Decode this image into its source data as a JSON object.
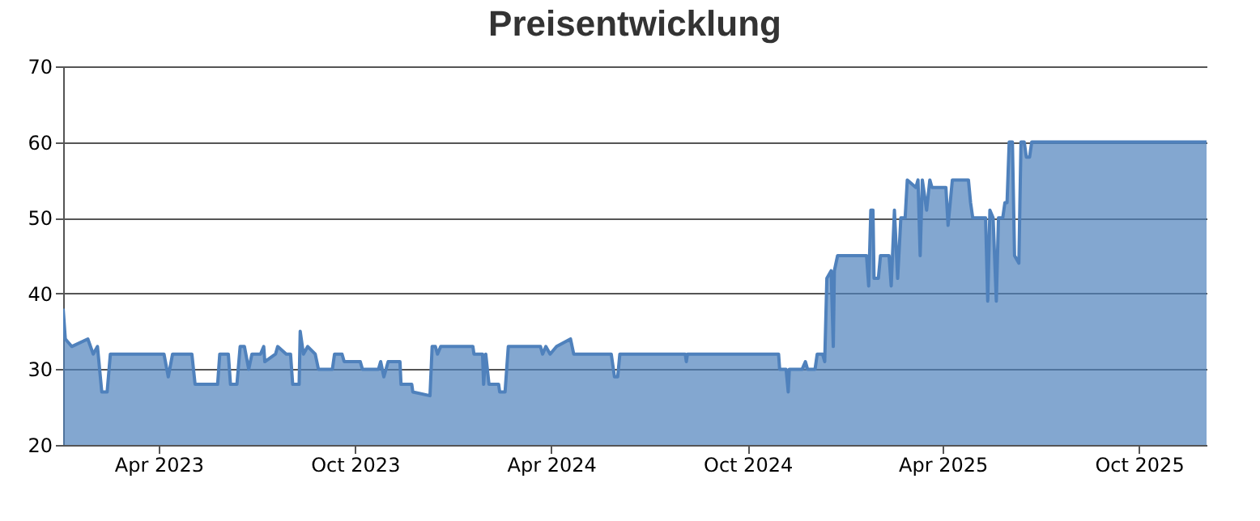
{
  "chart_data": {
    "type": "area",
    "title": "Preisentwicklung",
    "x": [
      "2023-01-02",
      "2023-01-04",
      "2023-01-10",
      "2023-01-25",
      "2023-01-30",
      "2023-02-03",
      "2023-02-07",
      "2023-02-12",
      "2023-02-15",
      "2023-04-06",
      "2023-04-10",
      "2023-04-14",
      "2023-05-02",
      "2023-05-05",
      "2023-05-26",
      "2023-05-28",
      "2023-06-05",
      "2023-06-07",
      "2023-06-13",
      "2023-06-16",
      "2023-06-20",
      "2023-06-24",
      "2023-06-27",
      "2023-07-05",
      "2023-07-08",
      "2023-07-09",
      "2023-07-19",
      "2023-07-21",
      "2023-07-29",
      "2023-08-02",
      "2023-08-04",
      "2023-08-10",
      "2023-08-11",
      "2023-08-14",
      "2023-08-18",
      "2023-08-25",
      "2023-08-28",
      "2023-09-10",
      "2023-09-12",
      "2023-09-19",
      "2023-09-21",
      "2023-10-06",
      "2023-10-08",
      "2023-10-23",
      "2023-10-25",
      "2023-10-28",
      "2023-11-01",
      "2023-11-12",
      "2023-11-13",
      "2023-11-23",
      "2023-11-24",
      "2023-12-10",
      "2023-12-12",
      "2023-12-15",
      "2023-12-17",
      "2023-12-20",
      "2024-01-19",
      "2024-01-20",
      "2024-01-28",
      "2024-01-29",
      "2024-01-31",
      "2024-02-03",
      "2024-02-12",
      "2024-02-13",
      "2024-02-18",
      "2024-02-21",
      "2024-03-22",
      "2024-03-24",
      "2024-03-27",
      "2024-03-31",
      "2024-04-06",
      "2024-04-19",
      "2024-04-22",
      "2024-05-27",
      "2024-05-30",
      "2024-06-02",
      "2024-06-04",
      "2024-08-04",
      "2024-08-05",
      "2024-08-06",
      "2024-10-30",
      "2024-10-31",
      "2024-11-06",
      "2024-11-08",
      "2024-11-09",
      "2024-11-21",
      "2024-11-24",
      "2024-11-26",
      "2024-12-03",
      "2024-12-05",
      "2024-12-10",
      "2024-12-12",
      "2024-12-14",
      "2024-12-18",
      "2024-12-20",
      "2024-12-21",
      "2024-12-24",
      "2025-01-20",
      "2025-01-22",
      "2025-01-24",
      "2025-01-26",
      "2025-01-27",
      "2025-01-31",
      "2025-02-02",
      "2025-02-10",
      "2025-02-12",
      "2025-02-15",
      "2025-02-18",
      "2025-02-21",
      "2025-02-25",
      "2025-02-27",
      "2025-03-07",
      "2025-03-09",
      "2025-03-11",
      "2025-03-13",
      "2025-03-17",
      "2025-03-20",
      "2025-03-22",
      "2025-04-04",
      "2025-04-06",
      "2025-04-10",
      "2025-04-25",
      "2025-04-27",
      "2025-04-29",
      "2025-05-11",
      "2025-05-13",
      "2025-05-15",
      "2025-05-18",
      "2025-05-21",
      "2025-05-23",
      "2025-05-27",
      "2025-05-29",
      "2025-05-31",
      "2025-06-02",
      "2025-06-05",
      "2025-06-07",
      "2025-06-11",
      "2025-06-13",
      "2025-06-16",
      "2025-06-18",
      "2025-06-21",
      "2025-06-23",
      "2025-12-03"
    ],
    "series": [
      {
        "color": "#4f81bc",
        "values": [
          38,
          34,
          33,
          34,
          32,
          33,
          27,
          27,
          32,
          32,
          29,
          32,
          32,
          28,
          28,
          32,
          32,
          28,
          28,
          33,
          33,
          30,
          32,
          32,
          33,
          31,
          32,
          33,
          32,
          32,
          28,
          28,
          35,
          32,
          33,
          32,
          30,
          30,
          32,
          32,
          31,
          31,
          30,
          30,
          31,
          29,
          31,
          31,
          28,
          28,
          27,
          26.5,
          33,
          33,
          32,
          33,
          33,
          32,
          32,
          28,
          32,
          28,
          28,
          27,
          27,
          33,
          33,
          32,
          33,
          32,
          33,
          34,
          32,
          32,
          29,
          29,
          32,
          32,
          31,
          32,
          32,
          30,
          30,
          27,
          30,
          30,
          31,
          30,
          30,
          32,
          32,
          31,
          42,
          43,
          33,
          43,
          45,
          45,
          41,
          51,
          51,
          42,
          42,
          45,
          45,
          41,
          51,
          42,
          50,
          50,
          55,
          54,
          55,
          45,
          55,
          51,
          55,
          54,
          54,
          49,
          55,
          55,
          52,
          50,
          50,
          39,
          51,
          50,
          39,
          50,
          50,
          52,
          52,
          60,
          60,
          45,
          44,
          60,
          60,
          58,
          58,
          60,
          60
        ]
      }
    ],
    "xlim": [
      "2023-01-02",
      "2025-12-03"
    ],
    "xticks": [
      {
        "value": "2023-04-01",
        "label": "Apr 2023"
      },
      {
        "value": "2023-10-01",
        "label": "Oct 2023"
      },
      {
        "value": "2024-04-01",
        "label": "Apr 2024"
      },
      {
        "value": "2024-10-01",
        "label": "Oct 2024"
      },
      {
        "value": "2025-04-01",
        "label": "Apr 2025"
      },
      {
        "value": "2025-10-01",
        "label": "Oct 2025"
      }
    ],
    "ylim": [
      20,
      70
    ],
    "yticks": [
      20,
      30,
      40,
      50,
      60,
      70
    ],
    "grid": "y"
  }
}
